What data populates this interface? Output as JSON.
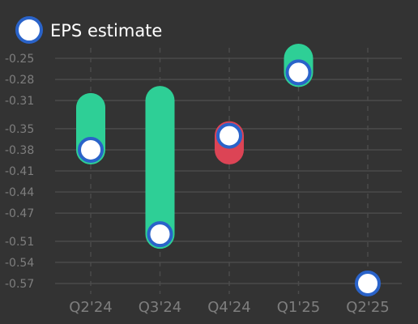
{
  "chart_data": {
    "type": "line",
    "legend": {
      "label": "EPS estimate",
      "placement": "top-left"
    },
    "categories": [
      "Q2'24",
      "Q3'24",
      "Q4'24",
      "Q1'25",
      "Q2'25"
    ],
    "yticks": [
      "-0.25",
      "-0.28",
      "-0.31",
      "-0.35",
      "-0.38",
      "-0.41",
      "-0.44",
      "-0.47",
      "-0.51",
      "-0.54",
      "-0.57"
    ],
    "ylim": [
      -0.585,
      -0.235
    ],
    "grid": true,
    "series": [
      {
        "name": "EPS estimate",
        "values": [
          -0.38,
          -0.5,
          -0.36,
          -0.27,
          -0.57
        ]
      }
    ],
    "actuals": [
      -0.32,
      -0.31,
      -0.38,
      -0.25,
      null
    ],
    "colors": {
      "background": "#333333",
      "beat": "#2ecf96",
      "miss": "#dc4455",
      "marker_fill": "#ffffff",
      "marker_stroke": "#2a63c9",
      "grid": "#4b4b4b",
      "tick_text": "#7e7e7e",
      "legend_text": "#ffffff"
    }
  }
}
